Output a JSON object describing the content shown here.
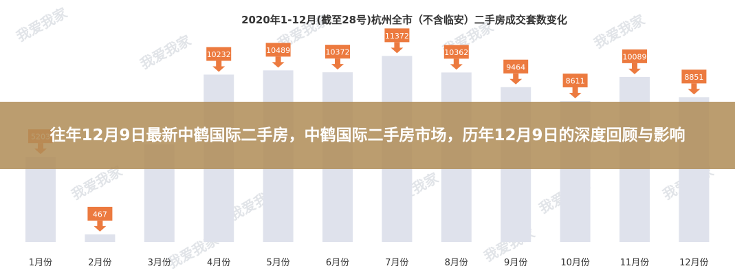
{
  "banner": {
    "title": "往年12月9日最新中鹤国际二手房，中鹤国际二手房市场，历年12月9日的深度回顾与影响"
  },
  "watermark": {
    "text": "我爱我家"
  },
  "colors": {
    "bar": "#dfe2ec",
    "label": "#ec7a3f",
    "banner": "#b08d57"
  },
  "chart_data": {
    "type": "bar",
    "title": "2020年1-12月(截至28号)杭州全市（不含临安）二手房成交套数变化",
    "categories": [
      "1月份",
      "2月份",
      "3月份",
      "4月份",
      "5月份",
      "6月份",
      "7月份",
      "8月份",
      "9月份",
      "10月份",
      "11月份",
      "12月份"
    ],
    "values": [
      5203,
      467,
      null,
      10232,
      10489,
      10372,
      11372,
      10362,
      9464,
      8611,
      10089,
      8851
    ],
    "data_labels": [
      "5203",
      "467",
      "",
      "10232",
      "10489",
      "10372",
      "11372",
      "10362",
      "9464",
      "8611",
      "10089",
      "8851"
    ],
    "ylim": [
      0,
      12000
    ],
    "xlabel": "",
    "ylabel": "",
    "grid": false,
    "legend": "none"
  }
}
